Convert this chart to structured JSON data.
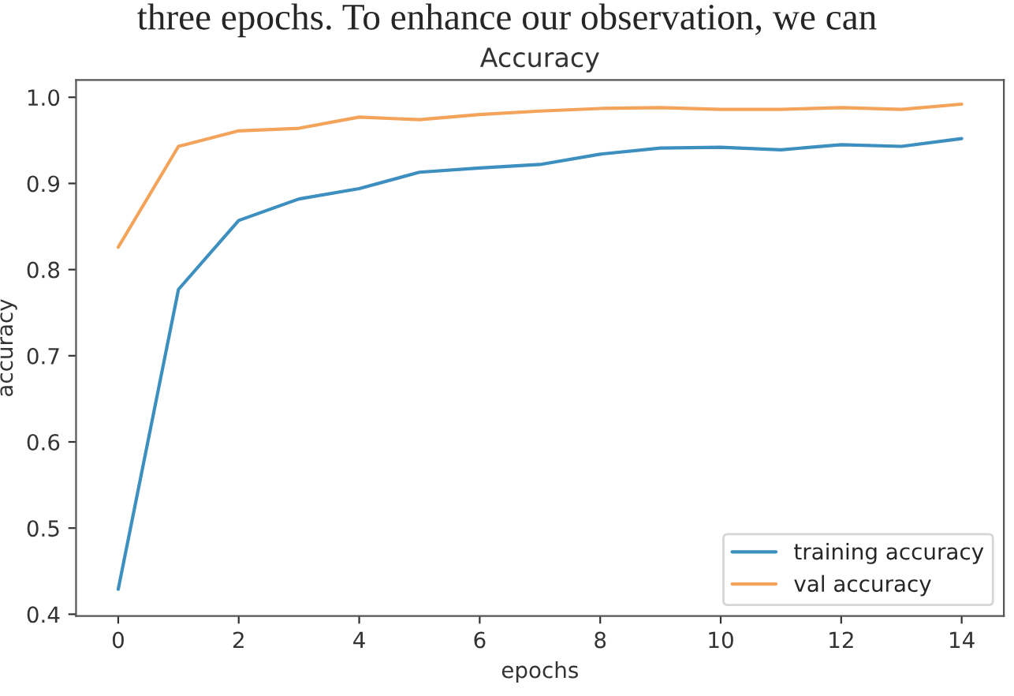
{
  "chart_data": {
    "type": "line",
    "title": "Accuracy",
    "xlabel": "epochs",
    "ylabel": "accuracy",
    "annotations": [
      "three epochs. To enhance our observation, we can"
    ],
    "x": [
      0,
      1,
      2,
      3,
      4,
      5,
      6,
      7,
      8,
      9,
      10,
      11,
      12,
      13,
      14
    ],
    "series": [
      {
        "name": "training accuracy",
        "color": "#3d8fc0",
        "values": [
          0.429,
          0.777,
          0.857,
          0.882,
          0.894,
          0.913,
          0.918,
          0.922,
          0.934,
          0.941,
          0.942,
          0.939,
          0.945,
          0.943,
          0.952
        ]
      },
      {
        "name": "val accuracy",
        "color": "#f3a35a",
        "values": [
          0.826,
          0.943,
          0.961,
          0.964,
          0.977,
          0.974,
          0.98,
          0.984,
          0.987,
          0.988,
          0.986,
          0.986,
          0.988,
          0.986,
          0.992
        ]
      }
    ],
    "xlim": [
      -0.7,
      14.7
    ],
    "xticks": [
      0,
      2,
      4,
      6,
      8,
      10,
      12,
      14
    ],
    "ylim": [
      0.398,
      1.02
    ],
    "yticks": [
      {
        "value": 0.4,
        "label": "0.4"
      },
      {
        "value": 0.5,
        "label": "0.5"
      },
      {
        "value": 0.6,
        "label": "0.6"
      },
      {
        "value": 0.7,
        "label": "0.7"
      },
      {
        "value": 0.8,
        "label": "0.8"
      },
      {
        "value": 0.9,
        "label": "0.9"
      },
      {
        "value": 1.0,
        "label": "1.0"
      }
    ],
    "grid": false,
    "legend": "lower right"
  }
}
